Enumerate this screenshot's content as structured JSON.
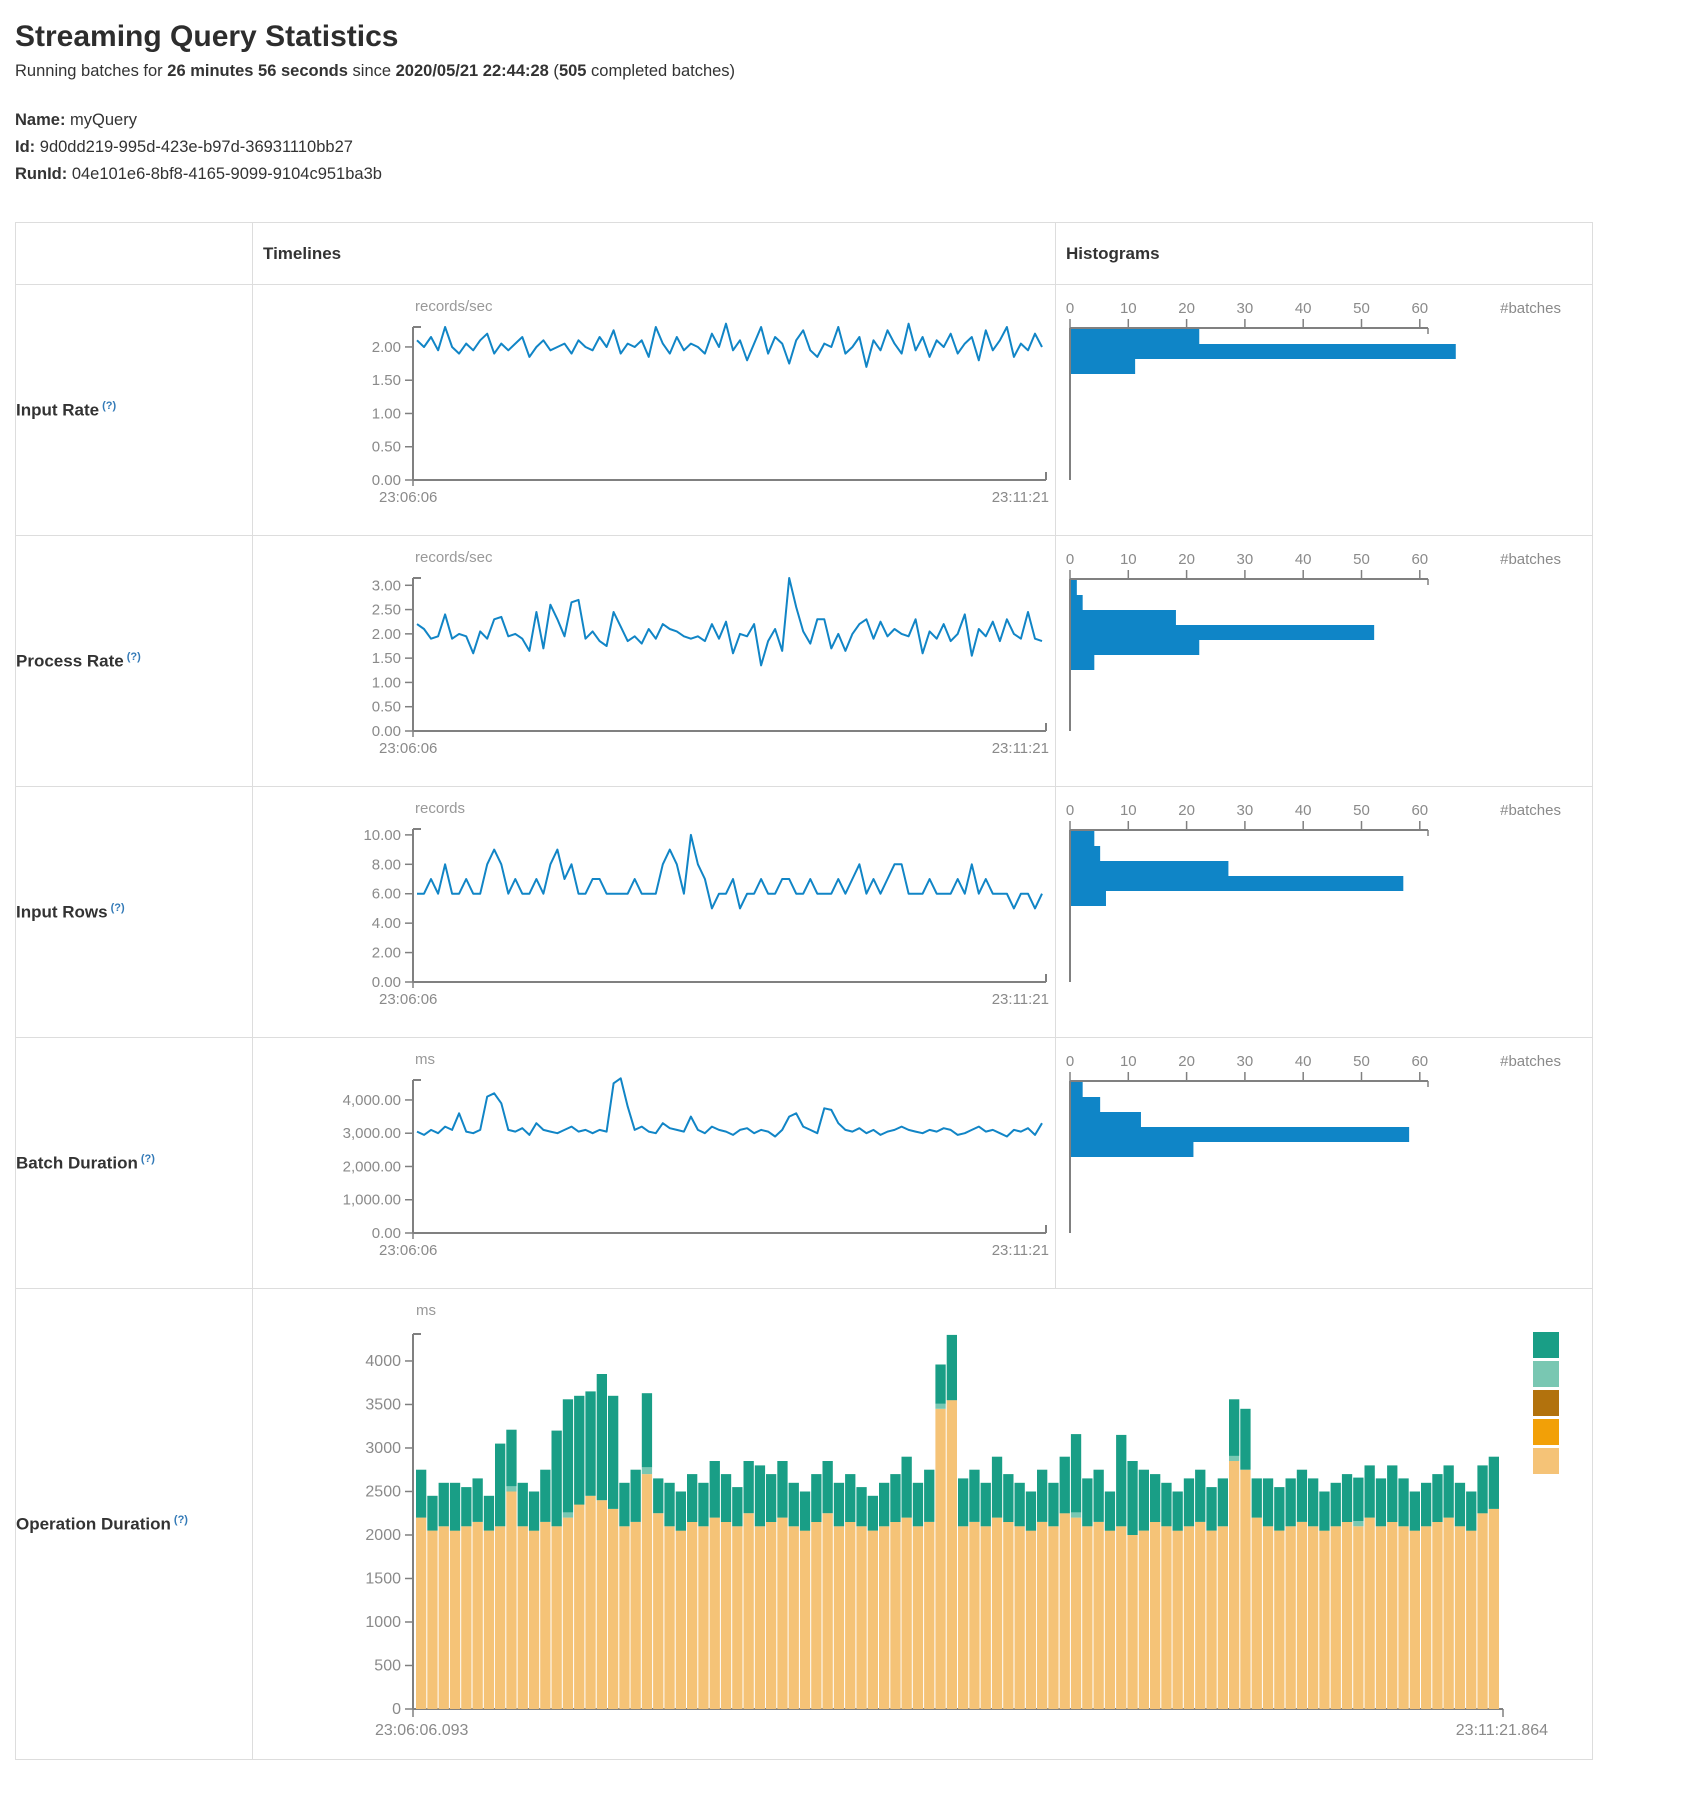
{
  "header": {
    "title": "Streaming Query Statistics",
    "running_prefix": "Running batches for ",
    "running_duration": "26 minutes 56 seconds",
    "running_since_word": " since ",
    "running_since": "2020/05/21 22:44:28",
    "running_open": " (",
    "completed_batches": "505",
    "running_suffix": " completed batches)",
    "name_label": "Name:",
    "name_value": "myQuery",
    "id_label": "Id:",
    "id_value": "9d0dd219-995d-423e-b97d-36931110bb27",
    "runid_label": "RunId:",
    "runid_value": "04e101e6-8bf8-4165-9099-9104c951ba3b"
  },
  "table_headers": {
    "timelines": "Timelines",
    "histograms": "Histograms"
  },
  "rows": [
    {
      "label": "Input Rate",
      "help": "(?)"
    },
    {
      "label": "Process Rate",
      "help": "(?)"
    },
    {
      "label": "Input Rows",
      "help": "(?)"
    },
    {
      "label": "Batch Duration",
      "help": "(?)"
    },
    {
      "label": "Operation Duration",
      "help": "(?)"
    }
  ],
  "colors": {
    "line_blue": "#1185C6",
    "hist_blue": "#0F85C7",
    "axis_gray": "#808080",
    "tick_text": "#8a8a8a",
    "unit_text": "#999999",
    "table_border": "#dddddd",
    "help_blue": "#337ab7"
  },
  "chart_data": {
    "input_rate_timeline": {
      "type": "line",
      "unit": "records/sec",
      "x_start": "23:06:06",
      "x_end": "23:11:21",
      "ylim": [
        0,
        2.3
      ],
      "yticks": [
        0,
        0.5,
        1,
        1.5,
        2
      ],
      "decimals": 2,
      "thousands": false,
      "values": [
        2.1,
        2.0,
        2.15,
        1.95,
        2.3,
        2.0,
        1.9,
        2.05,
        1.95,
        2.1,
        2.2,
        1.9,
        2.05,
        1.95,
        2.05,
        2.15,
        1.85,
        2.0,
        2.1,
        1.95,
        2.0,
        2.05,
        1.9,
        2.1,
        2.0,
        1.95,
        2.15,
        2.0,
        2.25,
        1.9,
        2.05,
        2.0,
        2.1,
        1.85,
        2.3,
        2.05,
        1.9,
        2.15,
        1.95,
        2.05,
        2.0,
        1.9,
        2.2,
        2.0,
        2.35,
        1.95,
        2.1,
        1.8,
        2.05,
        2.3,
        1.9,
        2.15,
        2.05,
        1.75,
        2.1,
        2.25,
        1.95,
        1.85,
        2.05,
        2.0,
        2.3,
        1.9,
        2.0,
        2.15,
        1.7,
        2.1,
        1.95,
        2.25,
        2.05,
        1.9,
        2.35,
        1.95,
        2.15,
        1.85,
        2.1,
        2.0,
        2.2,
        1.9,
        2.05,
        2.15,
        1.8,
        2.25,
        1.95,
        2.1,
        2.3,
        1.85,
        2.05,
        1.95,
        2.2,
        2.0
      ]
    },
    "input_rate_histogram": {
      "type": "histogram",
      "xlabel": "#batches",
      "xticks": [
        0,
        10,
        20,
        30,
        40,
        50,
        60
      ],
      "xlim": [
        0,
        67
      ],
      "values": [
        22,
        66,
        11
      ]
    },
    "process_rate_timeline": {
      "type": "line",
      "unit": "records/sec",
      "x_start": "23:06:06",
      "x_end": "23:11:21",
      "ylim": [
        0,
        3.15
      ],
      "yticks": [
        0,
        0.5,
        1,
        1.5,
        2,
        2.5,
        3
      ],
      "decimals": 2,
      "thousands": false,
      "values": [
        2.2,
        2.1,
        1.9,
        1.95,
        2.4,
        1.9,
        2.0,
        1.95,
        1.6,
        2.05,
        1.9,
        2.3,
        2.35,
        1.95,
        2.0,
        1.9,
        1.65,
        2.45,
        1.7,
        2.6,
        2.3,
        1.95,
        2.65,
        2.7,
        1.9,
        2.05,
        1.85,
        1.75,
        2.45,
        2.15,
        1.85,
        1.95,
        1.8,
        2.1,
        1.9,
        2.2,
        2.1,
        2.05,
        1.95,
        1.9,
        1.95,
        1.85,
        2.2,
        1.9,
        2.25,
        1.6,
        2.0,
        1.95,
        2.2,
        1.35,
        1.85,
        2.1,
        1.65,
        3.15,
        2.55,
        2.05,
        1.8,
        2.3,
        2.3,
        1.7,
        2.0,
        1.65,
        2.0,
        2.2,
        2.3,
        1.9,
        2.25,
        1.95,
        2.1,
        2.0,
        1.95,
        2.3,
        1.6,
        2.05,
        1.9,
        2.2,
        1.85,
        2.0,
        2.4,
        1.55,
        2.1,
        1.95,
        2.25,
        1.85,
        2.3,
        2.0,
        1.9,
        2.45,
        1.9,
        1.85
      ]
    },
    "process_rate_histogram": {
      "type": "histogram",
      "xlabel": "#batches",
      "xticks": [
        0,
        10,
        20,
        30,
        40,
        50,
        60
      ],
      "xlim": [
        0,
        67
      ],
      "values": [
        1,
        2,
        18,
        52,
        22,
        4
      ]
    },
    "input_rows_timeline": {
      "type": "line",
      "unit": "records",
      "x_start": "23:06:06",
      "x_end": "23:11:21",
      "ylim": [
        0,
        10.4
      ],
      "yticks": [
        0,
        2,
        4,
        6,
        8,
        10
      ],
      "decimals": 2,
      "thousands": false,
      "values": [
        6,
        6,
        7,
        6,
        8,
        6,
        6,
        7,
        6,
        6,
        8,
        9,
        8,
        6,
        7,
        6,
        6,
        7,
        6,
        8,
        9,
        7,
        8,
        6,
        6,
        7,
        7,
        6,
        6,
        6,
        6,
        7,
        6,
        6,
        6,
        8,
        9,
        8,
        6,
        10,
        8,
        7,
        5,
        6,
        6,
        7,
        5,
        6,
        6,
        7,
        6,
        6,
        7,
        7,
        6,
        6,
        7,
        6,
        6,
        6,
        7,
        6,
        7,
        8,
        6,
        7,
        6,
        7,
        8,
        8,
        6,
        6,
        6,
        7,
        6,
        6,
        6,
        7,
        6,
        8,
        6,
        7,
        6,
        6,
        6,
        5,
        6,
        6,
        5,
        6
      ]
    },
    "input_rows_histogram": {
      "type": "histogram",
      "xlabel": "#batches",
      "xticks": [
        0,
        10,
        20,
        30,
        40,
        50,
        60
      ],
      "xlim": [
        0,
        67
      ],
      "values": [
        4,
        5,
        27,
        57,
        6
      ]
    },
    "batch_duration_timeline": {
      "type": "line",
      "unit": "ms",
      "x_start": "23:06:06",
      "x_end": "23:11:21",
      "ylim": [
        0,
        4600
      ],
      "yticks": [
        0,
        1000,
        2000,
        3000,
        4000
      ],
      "decimals": 2,
      "thousands": true,
      "values": [
        3050,
        2950,
        3100,
        3000,
        3200,
        3100,
        3600,
        3050,
        3000,
        3100,
        4100,
        4200,
        3900,
        3100,
        3050,
        3150,
        2950,
        3300,
        3100,
        3050,
        3000,
        3100,
        3200,
        3050,
        3100,
        3000,
        3100,
        3050,
        4500,
        4650,
        3800,
        3100,
        3200,
        3050,
        3000,
        3300,
        3150,
        3100,
        3050,
        3500,
        3100,
        3000,
        3200,
        3100,
        3050,
        2950,
        3100,
        3150,
        3000,
        3100,
        3050,
        2900,
        3100,
        3500,
        3600,
        3200,
        3100,
        3000,
        3750,
        3700,
        3300,
        3100,
        3050,
        3150,
        3000,
        3100,
        2950,
        3050,
        3100,
        3200,
        3100,
        3050,
        3000,
        3100,
        3050,
        3150,
        3100,
        2950,
        3000,
        3100,
        3200,
        3050,
        3100,
        3000,
        2900,
        3100,
        3050,
        3150,
        2950,
        3300
      ]
    },
    "batch_duration_histogram": {
      "type": "histogram",
      "xlabel": "#batches",
      "xticks": [
        0,
        10,
        20,
        30,
        40,
        50,
        60
      ],
      "xlim": [
        0,
        67
      ],
      "values": [
        2,
        5,
        12,
        58,
        21
      ]
    },
    "operation_duration_stacked": {
      "type": "stacked",
      "unit": "ms",
      "x_start": "23:06:06.093",
      "x_end": "23:11:21.864",
      "ylim": [
        0,
        4310
      ],
      "yticks": [
        0,
        500,
        1000,
        1500,
        2000,
        2500,
        3000,
        3500,
        4000
      ],
      "decimals": 0,
      "thousands": false,
      "legend_colors": [
        "#199E86",
        "#79C7B2",
        "#B2720D",
        "#F2A007",
        "#F5C377"
      ],
      "series": [
        {
          "name": "tan",
          "color": "#F5C377",
          "values": [
            2200,
            2050,
            2100,
            2050,
            2100,
            2150,
            2050,
            2100,
            2500,
            2100,
            2050,
            2150,
            2100,
            2200,
            2350,
            2450,
            2400,
            2300,
            2100,
            2150,
            2700,
            2250,
            2100,
            2050,
            2150,
            2100,
            2200,
            2150,
            2100,
            2250,
            2100,
            2150,
            2200,
            2100,
            2050,
            2150,
            2250,
            2100,
            2150,
            2100,
            2050,
            2100,
            2150,
            2200,
            2100,
            2150,
            3450,
            3550,
            2100,
            2150,
            2100,
            2200,
            2150,
            2100,
            2050,
            2150,
            2100,
            2250,
            2200,
            2100,
            2150,
            2050,
            2100,
            2000,
            2050,
            2150,
            2100,
            2050,
            2100,
            2150,
            2050,
            2100,
            2850,
            2750,
            2200,
            2100,
            2050,
            2100,
            2150,
            2100,
            2050,
            2100,
            2150,
            2100,
            2200,
            2100,
            2150,
            2100,
            2050,
            2100,
            2150,
            2200,
            2100,
            2050,
            2250,
            2300
          ]
        },
        {
          "name": "light-teal",
          "color": "#79C7B2",
          "values": [
            0,
            0,
            0,
            0,
            0,
            0,
            0,
            0,
            60,
            0,
            0,
            0,
            0,
            60,
            0,
            0,
            0,
            0,
            0,
            0,
            80,
            0,
            0,
            0,
            0,
            0,
            0,
            0,
            0,
            0,
            0,
            0,
            0,
            0,
            0,
            0,
            0,
            0,
            0,
            0,
            0,
            0,
            0,
            0,
            0,
            0,
            60,
            0,
            0,
            0,
            0,
            0,
            0,
            0,
            0,
            0,
            0,
            0,
            60,
            0,
            0,
            0,
            0,
            0,
            0,
            0,
            0,
            0,
            0,
            0,
            0,
            0,
            60,
            0,
            0,
            0,
            0,
            0,
            0,
            0,
            0,
            0,
            0,
            60,
            0,
            0,
            0,
            0,
            0,
            0,
            0,
            0,
            0,
            0,
            0,
            0
          ]
        },
        {
          "name": "teal-green",
          "color": "#199E86",
          "values": [
            550,
            400,
            500,
            550,
            450,
            500,
            400,
            950,
            650,
            500,
            450,
            600,
            1100,
            1300,
            1250,
            1200,
            1450,
            1300,
            500,
            600,
            850,
            400,
            500,
            450,
            550,
            500,
            650,
            550,
            450,
            600,
            700,
            550,
            650,
            500,
            450,
            550,
            600,
            500,
            550,
            450,
            400,
            500,
            550,
            700,
            500,
            600,
            450,
            750,
            550,
            600,
            500,
            700,
            550,
            500,
            450,
            600,
            500,
            650,
            900,
            550,
            600,
            450,
            1050,
            850,
            700,
            550,
            500,
            450,
            550,
            600,
            500,
            550,
            650,
            700,
            450,
            550,
            500,
            550,
            600,
            550,
            450,
            500,
            550,
            500,
            600,
            550,
            650,
            550,
            450,
            500,
            550,
            600,
            500,
            450,
            550,
            600
          ]
        }
      ]
    }
  }
}
